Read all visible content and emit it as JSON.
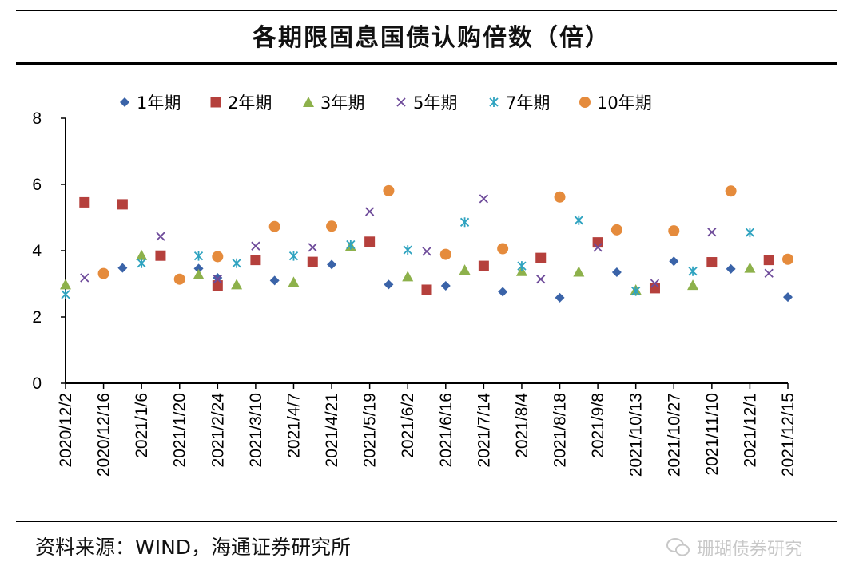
{
  "title": "各期限固息国债认购倍数（倍）",
  "source": "资料来源：WIND，海通证券研究所",
  "watermark": "珊瑚债券研究",
  "chart_data": {
    "type": "scatter",
    "title": "各期限固息国债认购倍数（倍）",
    "xlabel": "",
    "ylabel": "",
    "ylim": [
      0,
      8
    ],
    "yticks": [
      0,
      2,
      4,
      6,
      8
    ],
    "grid": false,
    "legend_position": "top",
    "x_tick_labels": [
      "2020/12/2",
      "2020/12/16",
      "2021/1/6",
      "2021/1/20",
      "2021/2/24",
      "2021/3/10",
      "2021/4/7",
      "2021/4/21",
      "2021/5/19",
      "2021/6/2",
      "2021/6/16",
      "2021/7/14",
      "2021/8/4",
      "2021/8/18",
      "2021/9/8",
      "2021/10/13",
      "2021/10/27",
      "2021/11/10",
      "2021/12/1",
      "2021/12/15"
    ],
    "n_slots": 39,
    "series": [
      {
        "name": "1年期",
        "marker": "diamond",
        "color": "#3a63a8",
        "points": [
          [
            3,
            3.48
          ],
          [
            7,
            3.46
          ],
          [
            8,
            3.18
          ],
          [
            11,
            3.1
          ],
          [
            14,
            3.58
          ],
          [
            17,
            2.98
          ],
          [
            20,
            2.94
          ],
          [
            23,
            2.76
          ],
          [
            26,
            2.58
          ],
          [
            29,
            3.35
          ],
          [
            32,
            3.68
          ],
          [
            35,
            3.45
          ],
          [
            38,
            2.6
          ]
        ]
      },
      {
        "name": "2年期",
        "marker": "square",
        "color": "#b5403c",
        "points": [
          [
            1,
            5.46
          ],
          [
            3,
            5.4
          ],
          [
            5,
            3.85
          ],
          [
            8,
            2.95
          ],
          [
            10,
            3.72
          ],
          [
            13,
            3.66
          ],
          [
            16,
            4.27
          ],
          [
            19,
            2.82
          ],
          [
            22,
            3.54
          ],
          [
            25,
            3.78
          ],
          [
            28,
            4.25
          ],
          [
            31,
            2.87
          ],
          [
            34,
            3.65
          ],
          [
            37,
            3.72
          ]
        ]
      },
      {
        "name": "3年期",
        "marker": "triangle",
        "color": "#8db14b",
        "points": [
          [
            0,
            2.98
          ],
          [
            4,
            3.86
          ],
          [
            7,
            3.28
          ],
          [
            9,
            2.98
          ],
          [
            12,
            3.05
          ],
          [
            15,
            4.14
          ],
          [
            18,
            3.22
          ],
          [
            21,
            3.42
          ],
          [
            24,
            3.38
          ],
          [
            27,
            3.36
          ],
          [
            30,
            2.82
          ],
          [
            33,
            2.96
          ],
          [
            36,
            3.48
          ]
        ]
      },
      {
        "name": "5年期",
        "marker": "x",
        "color": "#6e4b9a",
        "points": [
          [
            1,
            3.18
          ],
          [
            5,
            4.43
          ],
          [
            8,
            3.14
          ],
          [
            10,
            4.14
          ],
          [
            13,
            4.1
          ],
          [
            16,
            5.18
          ],
          [
            19,
            3.98
          ],
          [
            22,
            5.57
          ],
          [
            25,
            3.14
          ],
          [
            28,
            4.1
          ],
          [
            31,
            3.01
          ],
          [
            34,
            4.56
          ],
          [
            37,
            3.32
          ]
        ]
      },
      {
        "name": "7年期",
        "marker": "asterisk",
        "color": "#2fa3c0",
        "points": [
          [
            0,
            2.68
          ],
          [
            4,
            3.62
          ],
          [
            7,
            3.84
          ],
          [
            9,
            3.62
          ],
          [
            12,
            3.84
          ],
          [
            15,
            4.18
          ],
          [
            18,
            4.02
          ],
          [
            21,
            4.86
          ],
          [
            24,
            3.54
          ],
          [
            27,
            4.92
          ],
          [
            30,
            2.78
          ],
          [
            33,
            3.38
          ],
          [
            36,
            4.55
          ]
        ]
      },
      {
        "name": "10年期",
        "marker": "circle",
        "color": "#e58b3c",
        "points": [
          [
            2,
            3.31
          ],
          [
            6,
            3.14
          ],
          [
            8,
            3.82
          ],
          [
            11,
            4.73
          ],
          [
            14,
            4.74
          ],
          [
            17,
            5.81
          ],
          [
            20,
            3.89
          ],
          [
            23,
            4.06
          ],
          [
            26,
            5.62
          ],
          [
            29,
            4.63
          ],
          [
            32,
            4.6
          ],
          [
            35,
            5.8
          ],
          [
            38,
            3.74
          ]
        ]
      }
    ]
  }
}
